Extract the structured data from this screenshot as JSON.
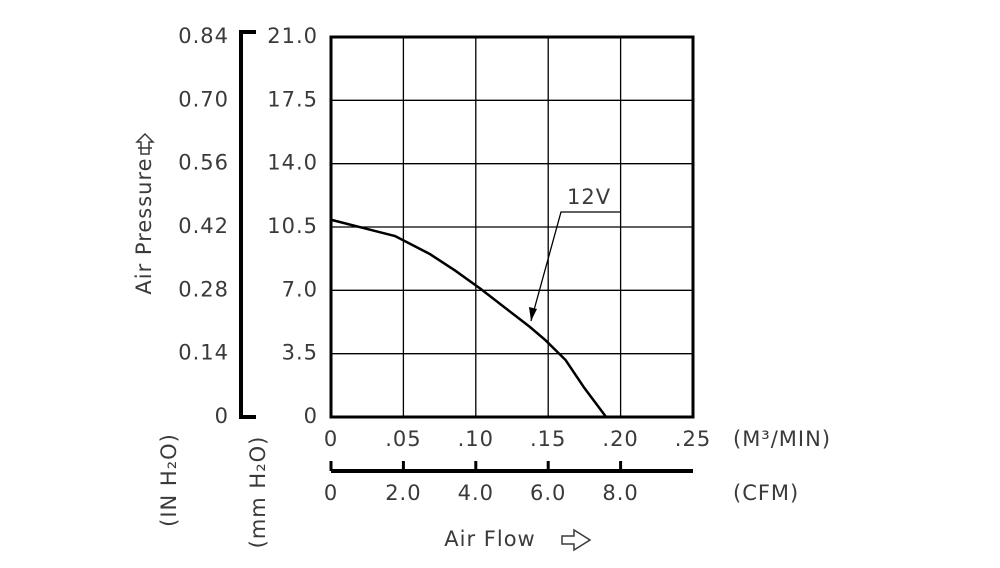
{
  "chart_data": {
    "type": "line",
    "y_label": "Air Pressure",
    "x_label": "Air Flow",
    "y_unit": "(mm H₂O)",
    "y2_unit": "(IN H₂O)",
    "x_unit": "(M³/MIN)",
    "x2_unit": "(CFM)",
    "x": [
      0,
      0.0442,
      0.0684,
      0.0856,
      0.103,
      0.137,
      0.148,
      0.162,
      0.175,
      0.19
    ],
    "series": [
      {
        "name": "12V",
        "color": "#000000",
        "values": [
          10.9,
          10.0,
          9.0,
          8.1,
          7.1,
          5.0,
          4.25,
          3.15,
          1.6,
          0
        ]
      }
    ],
    "xlim": [
      0,
      0.25
    ],
    "xticks": [
      0,
      {
        "value": 0.05,
        "label": ".05"
      },
      {
        "value": 0.1,
        "label": ".10"
      },
      {
        "value": 0.15,
        "label": ".15"
      },
      {
        "value": 0.2,
        "label": ".20"
      },
      {
        "value": 0.25,
        "label": ".25"
      }
    ],
    "x2lim": [
      0,
      10
    ],
    "x2ticks": [
      0,
      {
        "value": 2,
        "label": "2.0"
      },
      {
        "value": 4,
        "label": "4.0"
      },
      {
        "value": 6,
        "label": "6.0"
      },
      {
        "value": 8,
        "label": "8.0"
      }
    ],
    "ylim": [
      0,
      21
    ],
    "yticks": [
      0,
      3.5,
      {
        "value": 7,
        "label": "7.0"
      },
      10.5,
      {
        "value": 14,
        "label": "14.0"
      },
      17.5,
      {
        "value": 21,
        "label": "21.0"
      }
    ],
    "y2lim": [
      0,
      0.84
    ],
    "y2ticks": [
      0,
      0.14,
      0.28,
      0.42,
      0.56,
      {
        "value": 0.7,
        "label": "0.70"
      },
      0.84
    ],
    "grid": true
  }
}
